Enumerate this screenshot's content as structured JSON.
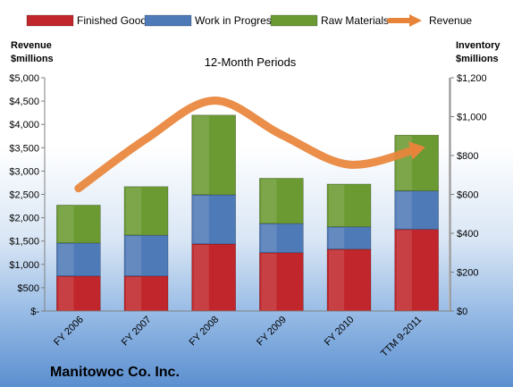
{
  "chart_data": {
    "type": "bar",
    "stacked": true,
    "title": "12-Month Periods",
    "company": "Manitowoc Co. Inc.",
    "categories": [
      "FY 2006",
      "FY 2007",
      "FY 2008",
      "FY 2009",
      "FY 2010",
      "TTM 9-2011"
    ],
    "series": [
      {
        "name": "Finished Goods",
        "axis": "right",
        "color": "#c0262b",
        "values": [
          180,
          180,
          345,
          300,
          318,
          420
        ]
      },
      {
        "name": "Work in Progress",
        "axis": "right",
        "color": "#4f7ab8",
        "values": [
          170,
          210,
          253,
          150,
          115,
          198
        ]
      },
      {
        "name": "Raw Materials",
        "axis": "right",
        "color": "#6b9a33",
        "values": [
          195,
          250,
          410,
          233,
          220,
          287
        ]
      },
      {
        "name": "Revenue",
        "axis": "left",
        "type": "line",
        "color": "#e8843a",
        "values": [
          2630,
          3690,
          4510,
          3780,
          3140,
          3470
        ]
      }
    ],
    "left_axis": {
      "label_line1": "Revenue",
      "label_line2": "$millions",
      "ylim": [
        0,
        5000
      ],
      "ticks": [
        0,
        500,
        1000,
        1500,
        2000,
        2500,
        3000,
        3500,
        4000,
        4500,
        5000
      ],
      "tick_labels": [
        "$-",
        "$500",
        "$1,000",
        "$1,500",
        "$2,000",
        "$2,500",
        "$3,000",
        "$3,500",
        "$4,000",
        "$4,500",
        "$5,000"
      ]
    },
    "right_axis": {
      "label_line1": "Inventory",
      "label_line2": "$millions",
      "ylim": [
        0,
        1200
      ],
      "ticks": [
        0,
        200,
        400,
        600,
        800,
        1000,
        1200
      ],
      "tick_labels": [
        "$0",
        "$200",
        "$400",
        "$600",
        "$800",
        "$1,000",
        "$1,200"
      ]
    },
    "grid": false,
    "legend": "top"
  }
}
